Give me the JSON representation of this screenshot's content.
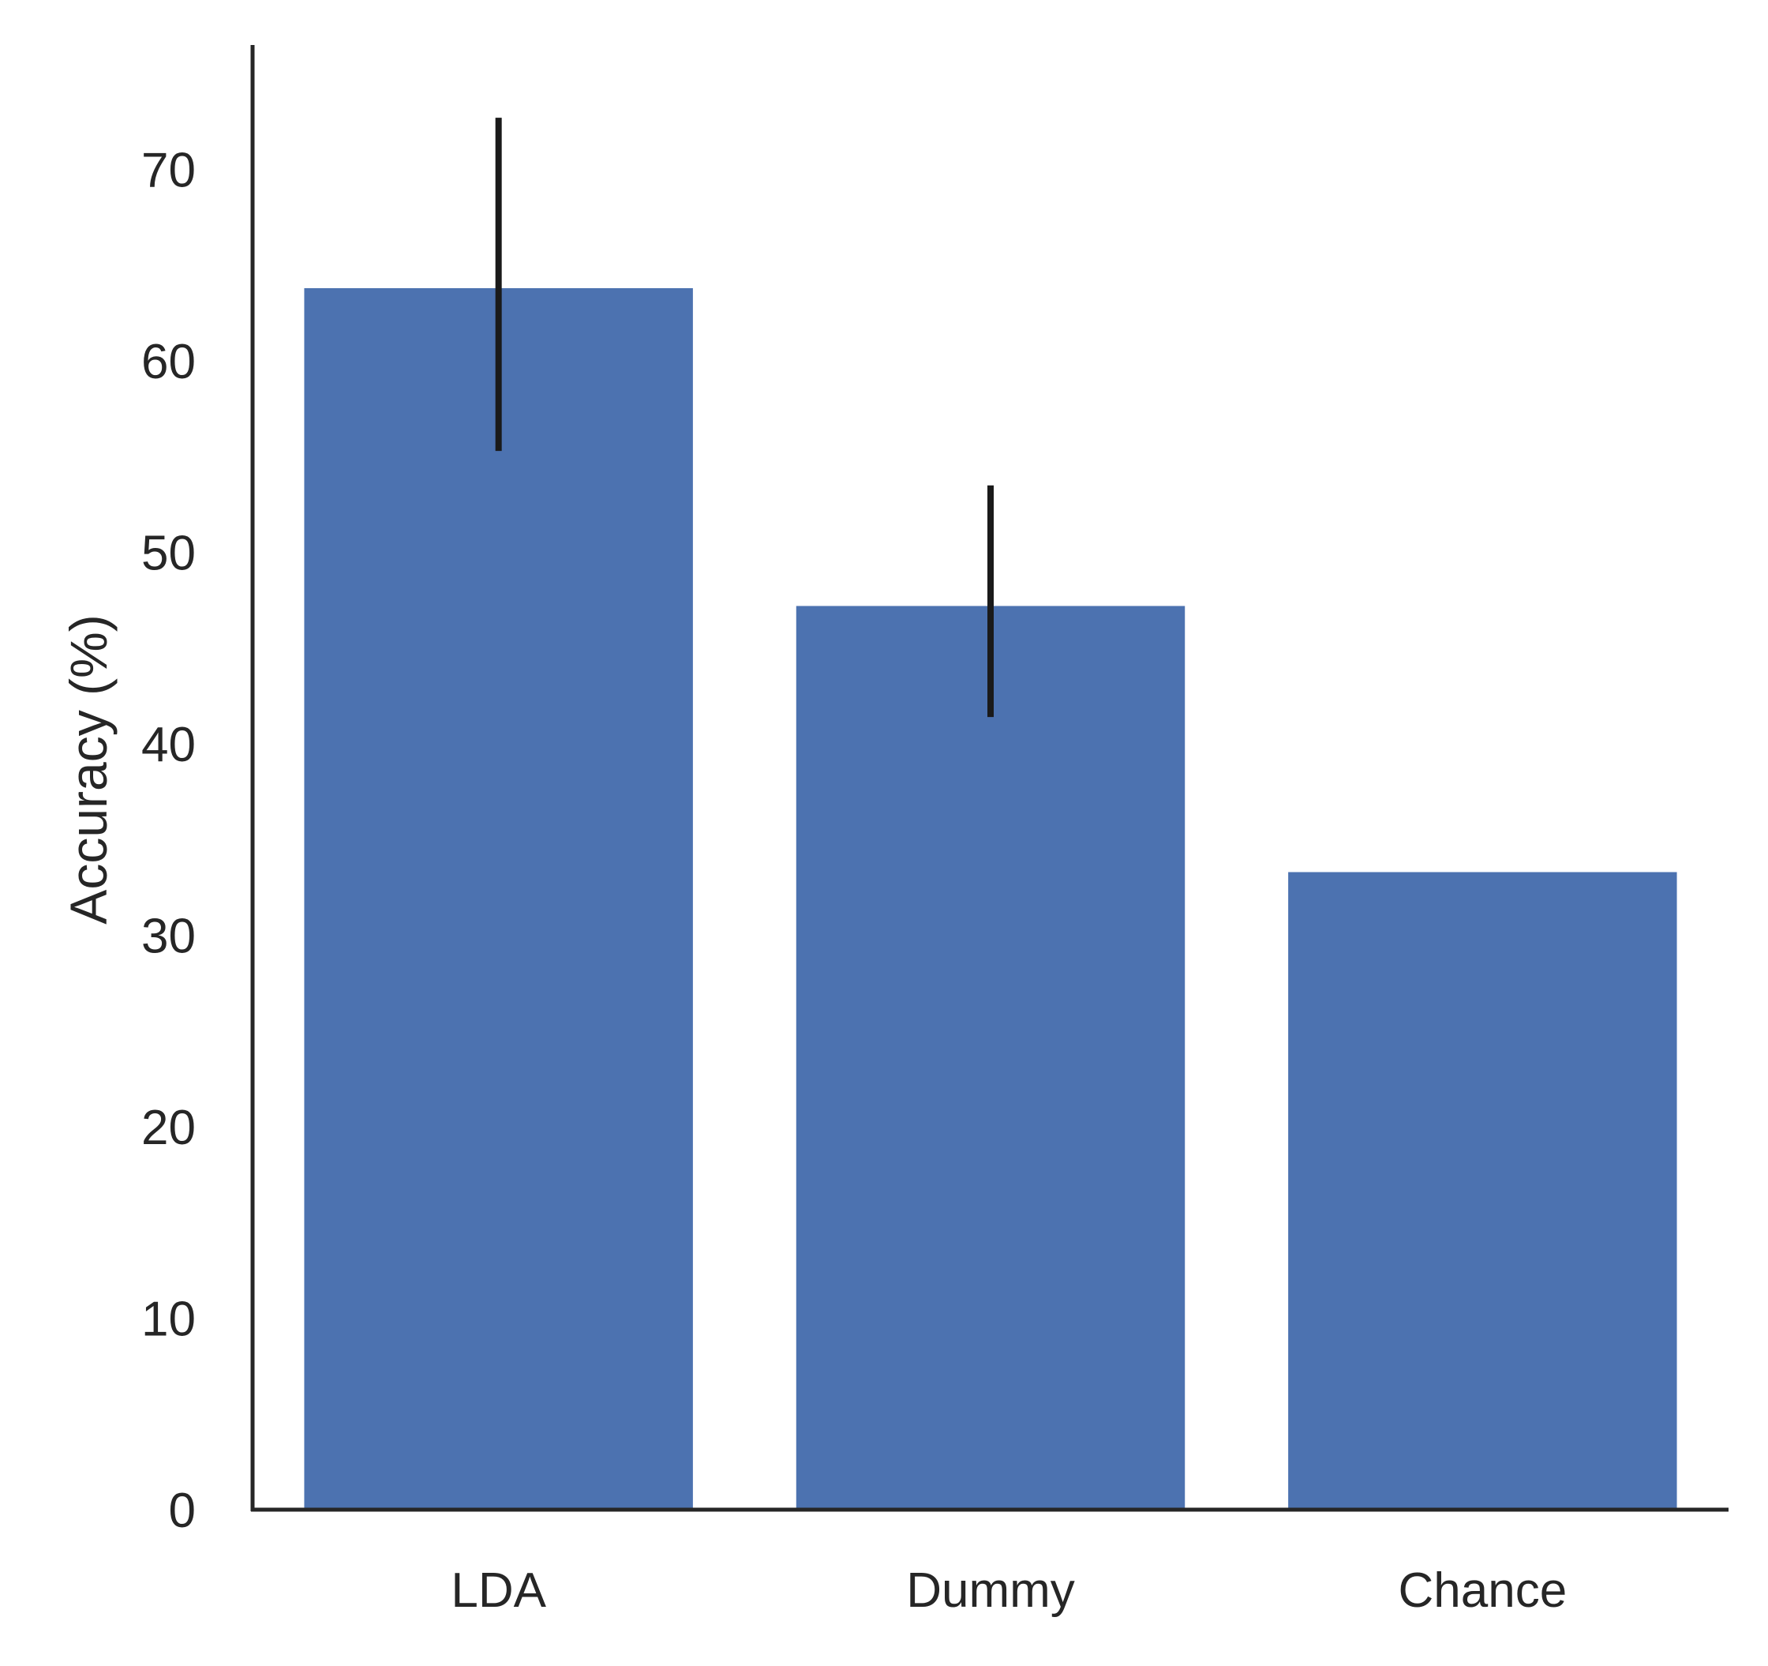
{
  "chart_data": {
    "type": "bar",
    "categories": [
      "LDA",
      "Dummy",
      "Chance"
    ],
    "values": [
      63.8,
      47.2,
      33.3
    ],
    "error_bars": [
      {
        "low": 55.3,
        "high": 72.7
      },
      {
        "low": 41.4,
        "high": 53.5
      },
      null
    ],
    "ylabel": "Accuracy (%)",
    "xlabel": "",
    "ylim": [
      0,
      76.5
    ],
    "yticks": [
      0,
      10,
      20,
      30,
      40,
      50,
      60,
      70
    ],
    "grid": false,
    "legend": "none",
    "colors": {
      "bar": "#4c72b0",
      "error_bar": "#1a1a1a",
      "axis": "#262626",
      "text": "#262626"
    }
  }
}
